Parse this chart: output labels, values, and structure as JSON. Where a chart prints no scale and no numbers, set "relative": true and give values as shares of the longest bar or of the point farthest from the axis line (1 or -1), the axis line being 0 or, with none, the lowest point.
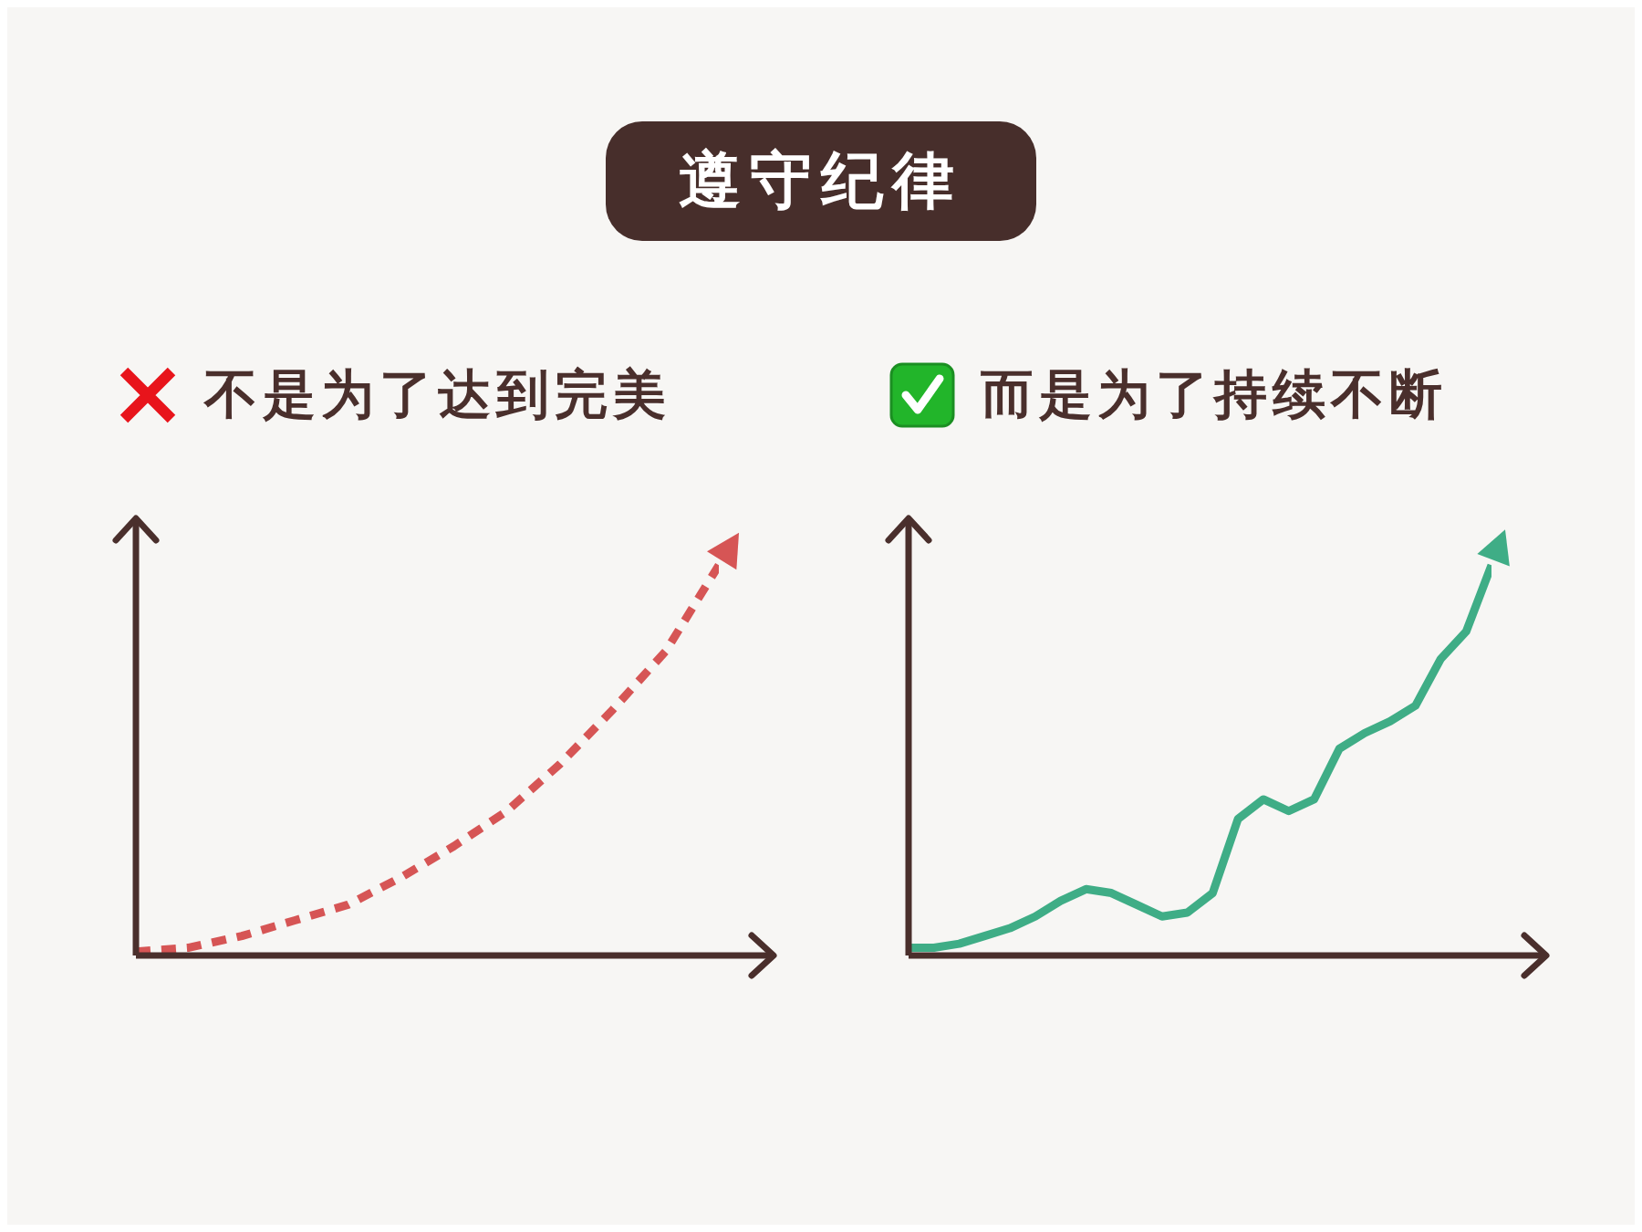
{
  "chart_data": [
    {
      "type": "line",
      "title": "遵守纪律",
      "subtitle": "不是为了达到完美",
      "relative": true,
      "line_style": "dashed",
      "categories": [
        null,
        null,
        null,
        null,
        null,
        null,
        null,
        null,
        null,
        null,
        null,
        null
      ],
      "series": [
        {
          "color": "#d65555",
          "values": [
            0.01,
            0.02,
            0.05,
            0.09,
            0.13,
            0.2,
            0.28,
            0.37,
            0.49,
            0.63,
            0.78,
            1
          ]
        }
      ]
    },
    {
      "type": "line",
      "subtitle": "而是为了持续不断",
      "relative": true,
      "line_style": "solid",
      "categories": [
        null,
        null,
        null,
        null,
        null,
        null,
        null,
        null,
        null,
        null,
        null,
        null,
        null,
        null,
        null,
        null,
        null,
        null,
        null,
        null,
        null,
        null,
        null,
        null
      ],
      "series": [
        {
          "color": "#3fad86",
          "values": [
            0.02,
            0.02,
            0.03,
            0.05,
            0.07,
            0.1,
            0.14,
            0.17,
            0.16,
            0.13,
            0.1,
            0.11,
            0.16,
            0.35,
            0.4,
            0.37,
            0.4,
            0.53,
            0.57,
            0.6,
            0.64,
            0.76,
            0.83,
            1
          ]
        }
      ]
    }
  ]
}
